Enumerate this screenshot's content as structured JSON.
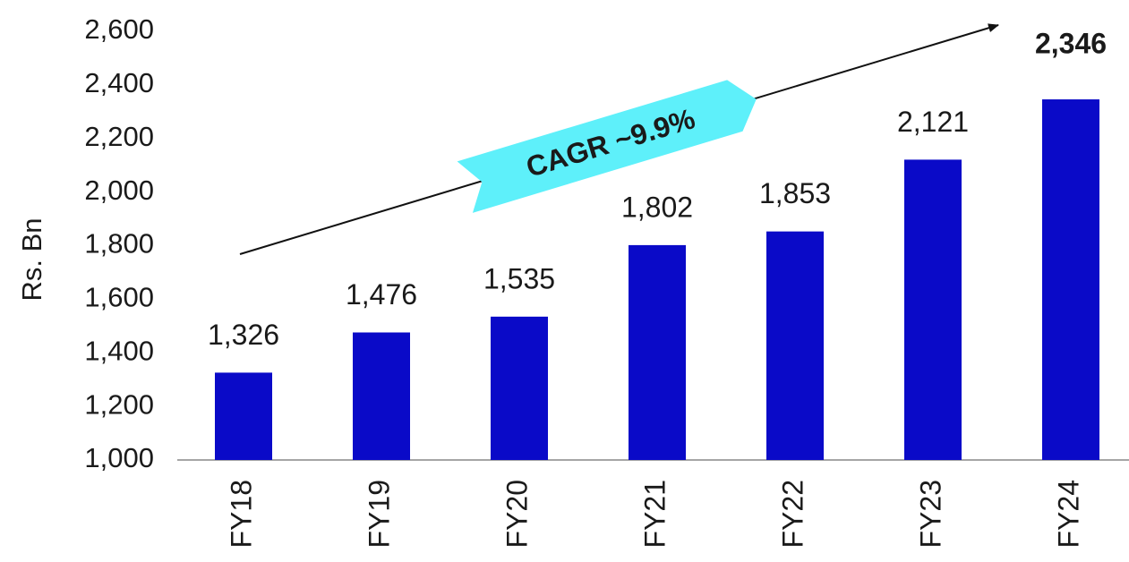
{
  "chart_data": {
    "type": "bar",
    "y_label": "Rs. Bn",
    "annotation": "CAGR ~9.9%",
    "categories": [
      "FY18",
      "FY19",
      "FY20",
      "FY21",
      "FY22",
      "FY23",
      "FY24"
    ],
    "values": [
      1326,
      1476,
      1535,
      1802,
      1853,
      2121,
      2346
    ],
    "value_labels": [
      "1,326",
      "1,476",
      "1,535",
      "1,802",
      "1,853",
      "2,121",
      "2,346"
    ],
    "color": "#0a0ac8",
    "ylim": [
      1000,
      2600
    ],
    "yticks": [
      {
        "value": 1000,
        "label": "1,000"
      },
      {
        "value": 1200,
        "label": "1,200"
      },
      {
        "value": 1400,
        "label": "1,400"
      },
      {
        "value": 1600,
        "label": "1,600"
      },
      {
        "value": 1800,
        "label": "1,800"
      },
      {
        "value": 2000,
        "label": "2,000"
      },
      {
        "value": 2200,
        "label": "2,200"
      },
      {
        "value": 2400,
        "label": "2,400"
      },
      {
        "value": 2600,
        "label": "2,600"
      }
    ],
    "grid": false
  }
}
